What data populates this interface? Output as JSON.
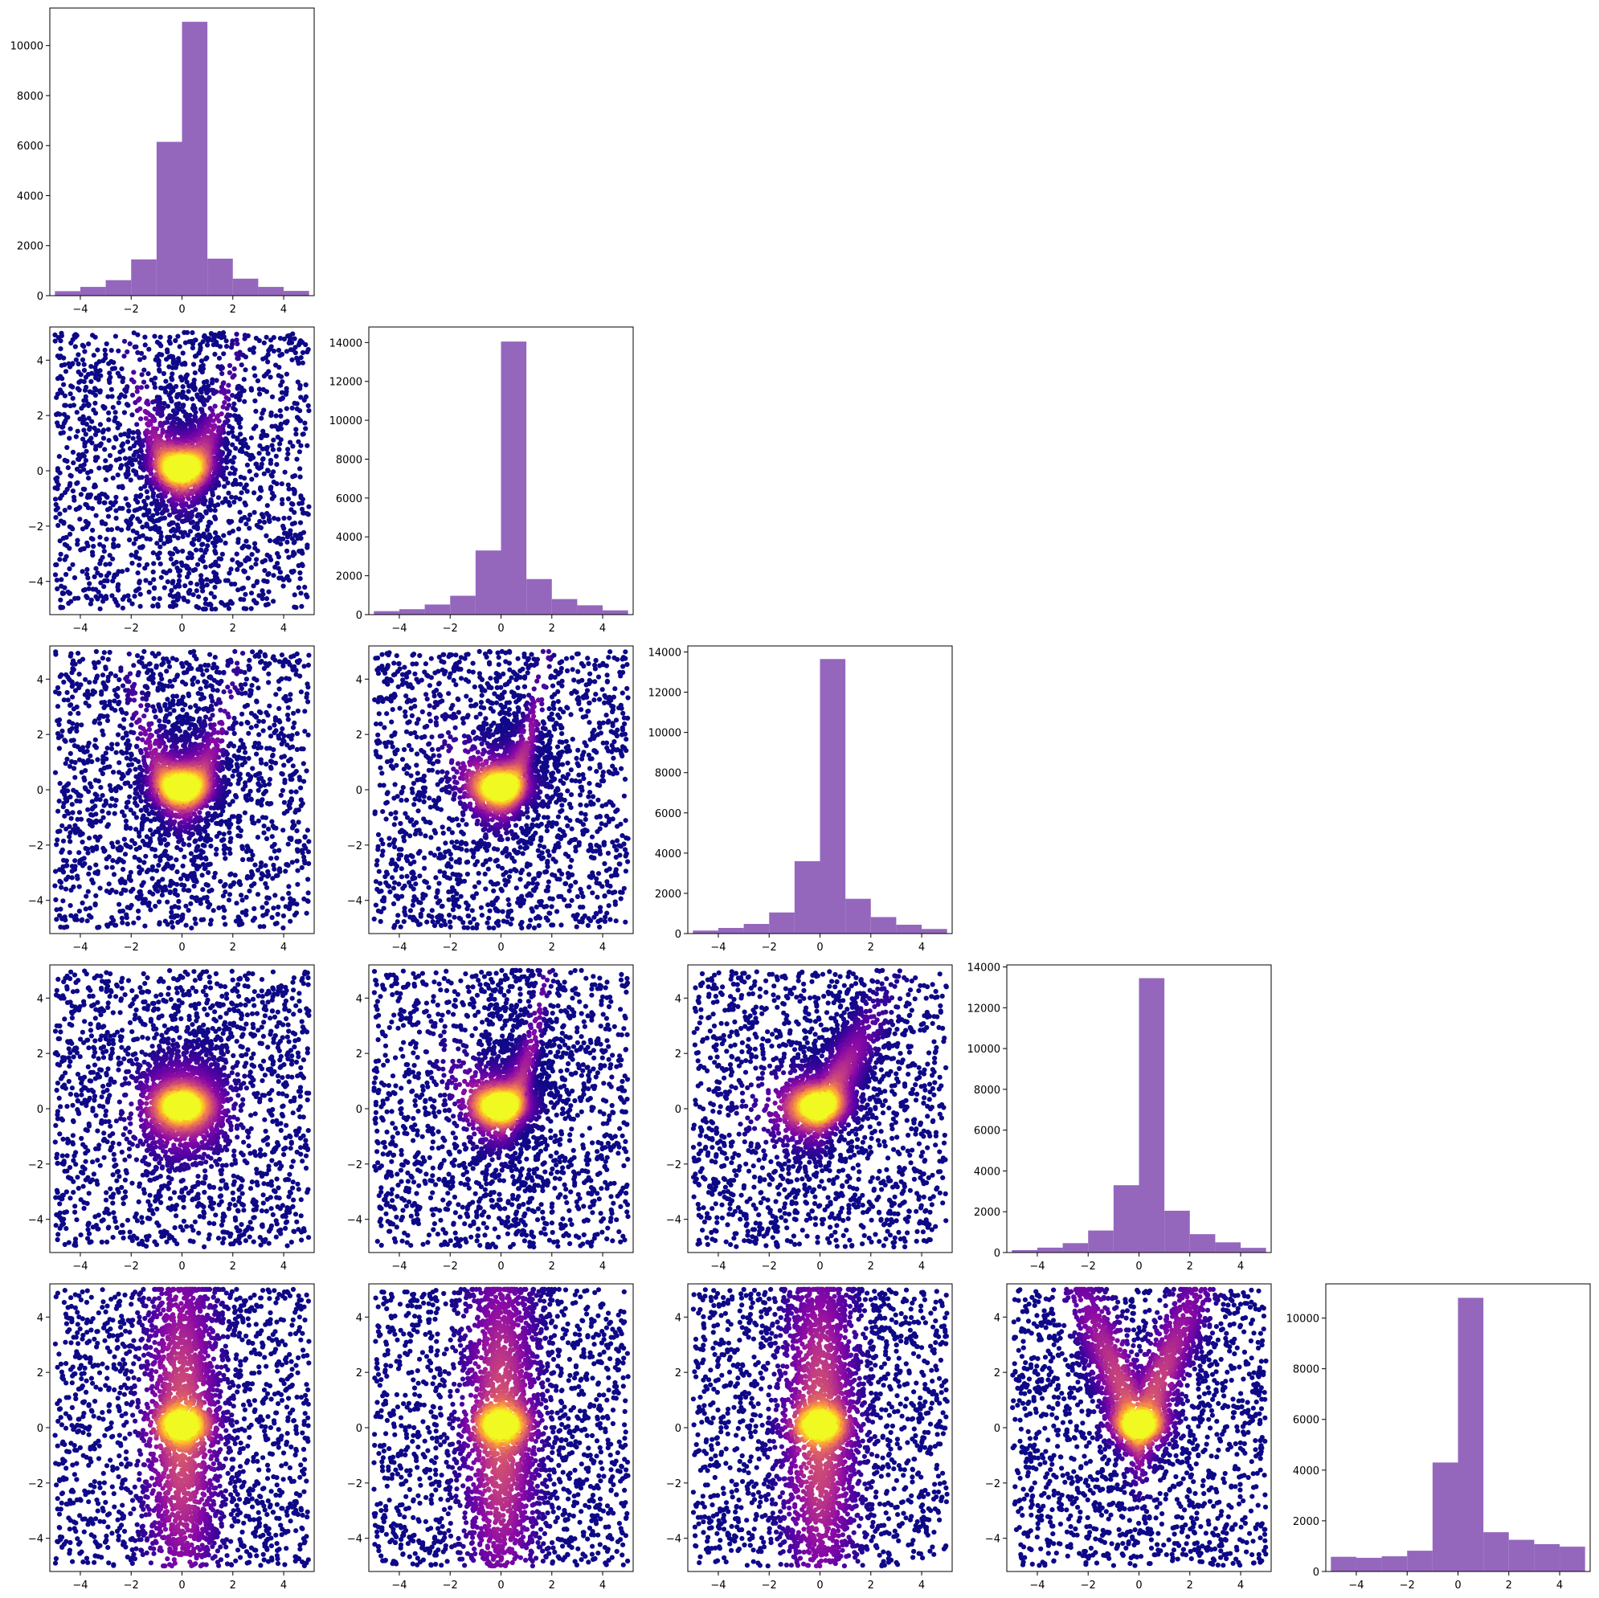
{
  "figure": {
    "layout": "5x5 lower-triangular corner plot",
    "scatter_colormap": "plasma (dark purple = low density, yellow = high density)",
    "hist_color": "#9467bd",
    "axis_range": [
      -5.2,
      5.2
    ],
    "tick_labels": [
      "−4",
      "−2",
      "0",
      "2",
      "4"
    ]
  },
  "chart_data": [
    {
      "type": "bar",
      "panel": "hist-0",
      "row": 0,
      "col": 0,
      "bin_edges": [
        -5,
        -4,
        -3,
        -2,
        -1,
        0,
        1,
        2,
        3,
        4,
        5
      ],
      "values": [
        180,
        350,
        620,
        1450,
        6150,
        10950,
        1480,
        680,
        350,
        190
      ],
      "ylim": [
        0,
        11500
      ],
      "yticks": [
        0,
        2000,
        4000,
        6000,
        8000,
        10000
      ]
    },
    {
      "type": "bar",
      "panel": "hist-1",
      "row": 1,
      "col": 1,
      "bin_edges": [
        -5,
        -4,
        -3,
        -2,
        -1,
        0,
        1,
        2,
        3,
        4,
        5
      ],
      "values": [
        180,
        280,
        520,
        970,
        3300,
        14050,
        1830,
        800,
        480,
        220
      ],
      "ylim": [
        0,
        14800
      ],
      "yticks": [
        0,
        2000,
        4000,
        6000,
        8000,
        10000,
        12000,
        14000
      ]
    },
    {
      "type": "bar",
      "panel": "hist-2",
      "row": 2,
      "col": 2,
      "bin_edges": [
        -5,
        -4,
        -3,
        -2,
        -1,
        0,
        1,
        2,
        3,
        4,
        5
      ],
      "values": [
        150,
        280,
        480,
        1050,
        3600,
        13650,
        1730,
        820,
        440,
        230
      ],
      "ylim": [
        0,
        14300
      ],
      "yticks": [
        0,
        2000,
        4000,
        6000,
        8000,
        10000,
        12000,
        14000
      ]
    },
    {
      "type": "bar",
      "panel": "hist-3",
      "row": 3,
      "col": 3,
      "bin_edges": [
        -5,
        -4,
        -3,
        -2,
        -1,
        0,
        1,
        2,
        3,
        4,
        5
      ],
      "values": [
        120,
        240,
        460,
        1080,
        3300,
        13450,
        2050,
        900,
        500,
        230
      ],
      "ylim": [
        0,
        14100
      ],
      "yticks": [
        0,
        2000,
        4000,
        6000,
        8000,
        10000,
        12000,
        14000
      ]
    },
    {
      "type": "bar",
      "panel": "hist-4",
      "row": 4,
      "col": 4,
      "bin_edges": [
        -5,
        -4,
        -3,
        -2,
        -1,
        0,
        1,
        2,
        3,
        4,
        5
      ],
      "values": [
        580,
        540,
        600,
        820,
        4300,
        10800,
        1550,
        1250,
        1080,
        980
      ],
      "ylim": [
        0,
        11350
      ],
      "yticks": [
        0,
        2000,
        4000,
        6000,
        8000,
        10000
      ]
    },
    {
      "type": "scatter",
      "panel": "scatter-1-0",
      "row": 1,
      "col": 0,
      "shape": "u",
      "xlim": [
        -5.2,
        5.2
      ],
      "ylim": [
        -5.2,
        5.2
      ]
    },
    {
      "type": "scatter",
      "panel": "scatter-2-0",
      "row": 2,
      "col": 0,
      "shape": "u",
      "xlim": [
        -5.2,
        5.2
      ],
      "ylim": [
        -5.2,
        5.2
      ]
    },
    {
      "type": "scatter",
      "panel": "scatter-2-1",
      "row": 2,
      "col": 1,
      "shape": "hook",
      "xlim": [
        -5.2,
        5.2
      ],
      "ylim": [
        -5.2,
        5.2
      ]
    },
    {
      "type": "scatter",
      "panel": "scatter-3-0",
      "row": 3,
      "col": 0,
      "shape": "flat",
      "xlim": [
        -5.2,
        5.2
      ],
      "ylim": [
        -5.2,
        5.2
      ]
    },
    {
      "type": "scatter",
      "panel": "scatter-3-1",
      "row": 3,
      "col": 1,
      "shape": "hook",
      "xlim": [
        -5.2,
        5.2
      ],
      "ylim": [
        -5.2,
        5.2
      ]
    },
    {
      "type": "scatter",
      "panel": "scatter-3-2",
      "row": 3,
      "col": 2,
      "shape": "diag",
      "xlim": [
        -5.2,
        5.2
      ],
      "ylim": [
        -5.2,
        5.2
      ]
    },
    {
      "type": "scatter",
      "panel": "scatter-4-0",
      "row": 4,
      "col": 0,
      "shape": "band",
      "xlim": [
        -5.2,
        5.2
      ],
      "ylim": [
        -5.2,
        5.2
      ]
    },
    {
      "type": "scatter",
      "panel": "scatter-4-1",
      "row": 4,
      "col": 1,
      "shape": "band",
      "xlim": [
        -5.2,
        5.2
      ],
      "ylim": [
        -5.2,
        5.2
      ]
    },
    {
      "type": "scatter",
      "panel": "scatter-4-2",
      "row": 4,
      "col": 2,
      "shape": "band",
      "xlim": [
        -5.2,
        5.2
      ],
      "ylim": [
        -5.2,
        5.2
      ]
    },
    {
      "type": "scatter",
      "panel": "scatter-4-3",
      "row": 4,
      "col": 3,
      "shape": "v",
      "xlim": [
        -5.2,
        5.2
      ],
      "ylim": [
        -5.2,
        5.2
      ]
    }
  ]
}
